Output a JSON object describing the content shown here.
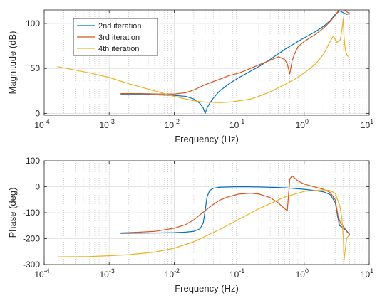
{
  "chart_data": [
    {
      "type": "line",
      "x_scale": "log",
      "xlim": [
        0.0001,
        10
      ],
      "ylim": [
        -2,
        115
      ],
      "xlabel": "Frequency (Hz)",
      "ylabel": "Magnitude (dB)",
      "x_ticks": [
        {
          "value": 0.0001,
          "base": "10",
          "exp": "-4"
        },
        {
          "value": 0.001,
          "base": "10",
          "exp": "-3"
        },
        {
          "value": 0.01,
          "base": "10",
          "exp": "-2"
        },
        {
          "value": 0.1,
          "base": "10",
          "exp": "-1"
        },
        {
          "value": 1,
          "base": "10",
          "exp": "0"
        },
        {
          "value": 10,
          "base": "10",
          "exp": "1"
        }
      ],
      "y_ticks": [
        {
          "value": 0,
          "label": "0"
        },
        {
          "value": 50,
          "label": "50"
        },
        {
          "value": 100,
          "label": "100"
        }
      ],
      "grid": true,
      "legend_position": "top-left",
      "series": [
        {
          "name": "2nd iteration",
          "color": "#0072bd",
          "x": [
            0.0015,
            0.003,
            0.006,
            0.01,
            0.015,
            0.02,
            0.025,
            0.028,
            0.03,
            0.032,
            0.035,
            0.04,
            0.05,
            0.07,
            0.1,
            0.15,
            0.2,
            0.3,
            0.5,
            0.8,
            1.0,
            1.5,
            2.0,
            2.5,
            3.0,
            3.5,
            4.0,
            4.5,
            5.0
          ],
          "y": [
            21,
            21,
            20.5,
            20,
            19,
            16,
            11,
            6,
            0,
            6,
            11,
            17,
            25,
            33,
            40,
            47,
            52,
            60,
            71,
            80,
            84,
            91,
            97,
            103,
            110,
            114,
            112,
            110,
            111
          ]
        },
        {
          "name": "3rd iteration",
          "color": "#d95319",
          "x": [
            0.0015,
            0.003,
            0.006,
            0.01,
            0.015,
            0.02,
            0.03,
            0.05,
            0.07,
            0.1,
            0.15,
            0.2,
            0.3,
            0.4,
            0.5,
            0.55,
            0.6,
            0.65,
            0.7,
            0.8,
            1.0,
            1.5,
            2.0,
            2.5,
            3.0,
            3.5,
            4.0,
            4.5,
            5.0
          ],
          "y": [
            22,
            22,
            21.5,
            21.5,
            23,
            26,
            32,
            38,
            42,
            45,
            50,
            54,
            59,
            63,
            60,
            55,
            44,
            58,
            65,
            74,
            80,
            88,
            95,
            102,
            109,
            116,
            116,
            113,
            111
          ]
        },
        {
          "name": "4th iteration",
          "color": "#edb120",
          "x": [
            0.00016,
            0.0005,
            0.001,
            0.002,
            0.005,
            0.01,
            0.02,
            0.03,
            0.05,
            0.07,
            0.1,
            0.15,
            0.2,
            0.3,
            0.5,
            0.8,
            1.0,
            1.5,
            2.0,
            2.5,
            2.8,
            3.2,
            3.6,
            3.9,
            4.0,
            4.1,
            4.3,
            4.6,
            4.9
          ],
          "y": [
            52,
            45,
            40,
            33,
            25,
            19,
            14,
            12.5,
            12,
            12.5,
            14,
            16,
            19,
            24,
            32,
            40,
            45,
            55,
            66,
            80,
            86,
            79,
            82,
            98,
            106,
            85,
            70,
            64,
            63
          ]
        }
      ]
    },
    {
      "type": "line",
      "x_scale": "log",
      "xlim": [
        0.0001,
        10
      ],
      "ylim": [
        -300,
        100
      ],
      "xlabel": "Frequency (Hz)",
      "ylabel": "Phase (deg)",
      "x_ticks": [
        {
          "value": 0.0001,
          "base": "10",
          "exp": "-4"
        },
        {
          "value": 0.001,
          "base": "10",
          "exp": "-3"
        },
        {
          "value": 0.01,
          "base": "10",
          "exp": "-2"
        },
        {
          "value": 0.1,
          "base": "10",
          "exp": "-1"
        },
        {
          "value": 1,
          "base": "10",
          "exp": "0"
        },
        {
          "value": 10,
          "base": "10",
          "exp": "1"
        }
      ],
      "y_ticks": [
        {
          "value": 100,
          "label": "100"
        },
        {
          "value": 0,
          "label": "0"
        },
        {
          "value": -100,
          "label": "-100"
        },
        {
          "value": -200,
          "label": "-200"
        },
        {
          "value": -300,
          "label": "-300"
        }
      ],
      "grid": true,
      "series": [
        {
          "name": "2nd iteration",
          "color": "#0072bd",
          "x": [
            0.0015,
            0.003,
            0.006,
            0.01,
            0.015,
            0.02,
            0.025,
            0.028,
            0.03,
            0.032,
            0.035,
            0.04,
            0.05,
            0.1,
            0.2,
            0.5,
            1.0,
            1.5,
            2.0,
            2.5,
            3.0,
            3.3,
            3.5,
            3.8,
            4.0,
            4.5,
            5.0
          ],
          "y": [
            -180,
            -179,
            -178,
            -177,
            -175,
            -172,
            -162,
            -140,
            -90,
            -40,
            -15,
            -6,
            -2,
            0,
            -1,
            -4,
            -10,
            -15,
            -20,
            -30,
            -60,
            -120,
            -150,
            -155,
            -160,
            -170,
            -185
          ]
        },
        {
          "name": "3rd iteration",
          "color": "#d95319",
          "x": [
            0.0015,
            0.003,
            0.005,
            0.01,
            0.015,
            0.02,
            0.03,
            0.04,
            0.05,
            0.07,
            0.1,
            0.15,
            0.2,
            0.3,
            0.4,
            0.5,
            0.55,
            0.6,
            0.65,
            0.7,
            0.8,
            1.0,
            1.5,
            2.0,
            2.5,
            3.0,
            3.3,
            3.6,
            3.9,
            4.2,
            4.6,
            5.0
          ],
          "y": [
            -178,
            -175,
            -172,
            -160,
            -146,
            -128,
            -92,
            -68,
            -52,
            -38,
            -28,
            -25,
            -28,
            -42,
            -62,
            -85,
            -92,
            30,
            42,
            35,
            22,
            10,
            -2,
            -10,
            -22,
            -50,
            -110,
            -140,
            -150,
            -160,
            -175,
            -180
          ]
        },
        {
          "name": "4th iteration",
          "color": "#edb120",
          "x": [
            0.00016,
            0.0005,
            0.001,
            0.002,
            0.005,
            0.01,
            0.02,
            0.05,
            0.1,
            0.2,
            0.5,
            1.0,
            2.0,
            2.5,
            3.0,
            3.5,
            3.8,
            4.0,
            4.1,
            4.2,
            4.5,
            4.9
          ],
          "y": [
            -270,
            -269,
            -266,
            -262,
            -252,
            -237,
            -212,
            -165,
            -125,
            -85,
            -40,
            -18,
            -12,
            -15,
            -25,
            -70,
            -120,
            -200,
            -285,
            -260,
            -200,
            -185
          ]
        }
      ]
    }
  ]
}
